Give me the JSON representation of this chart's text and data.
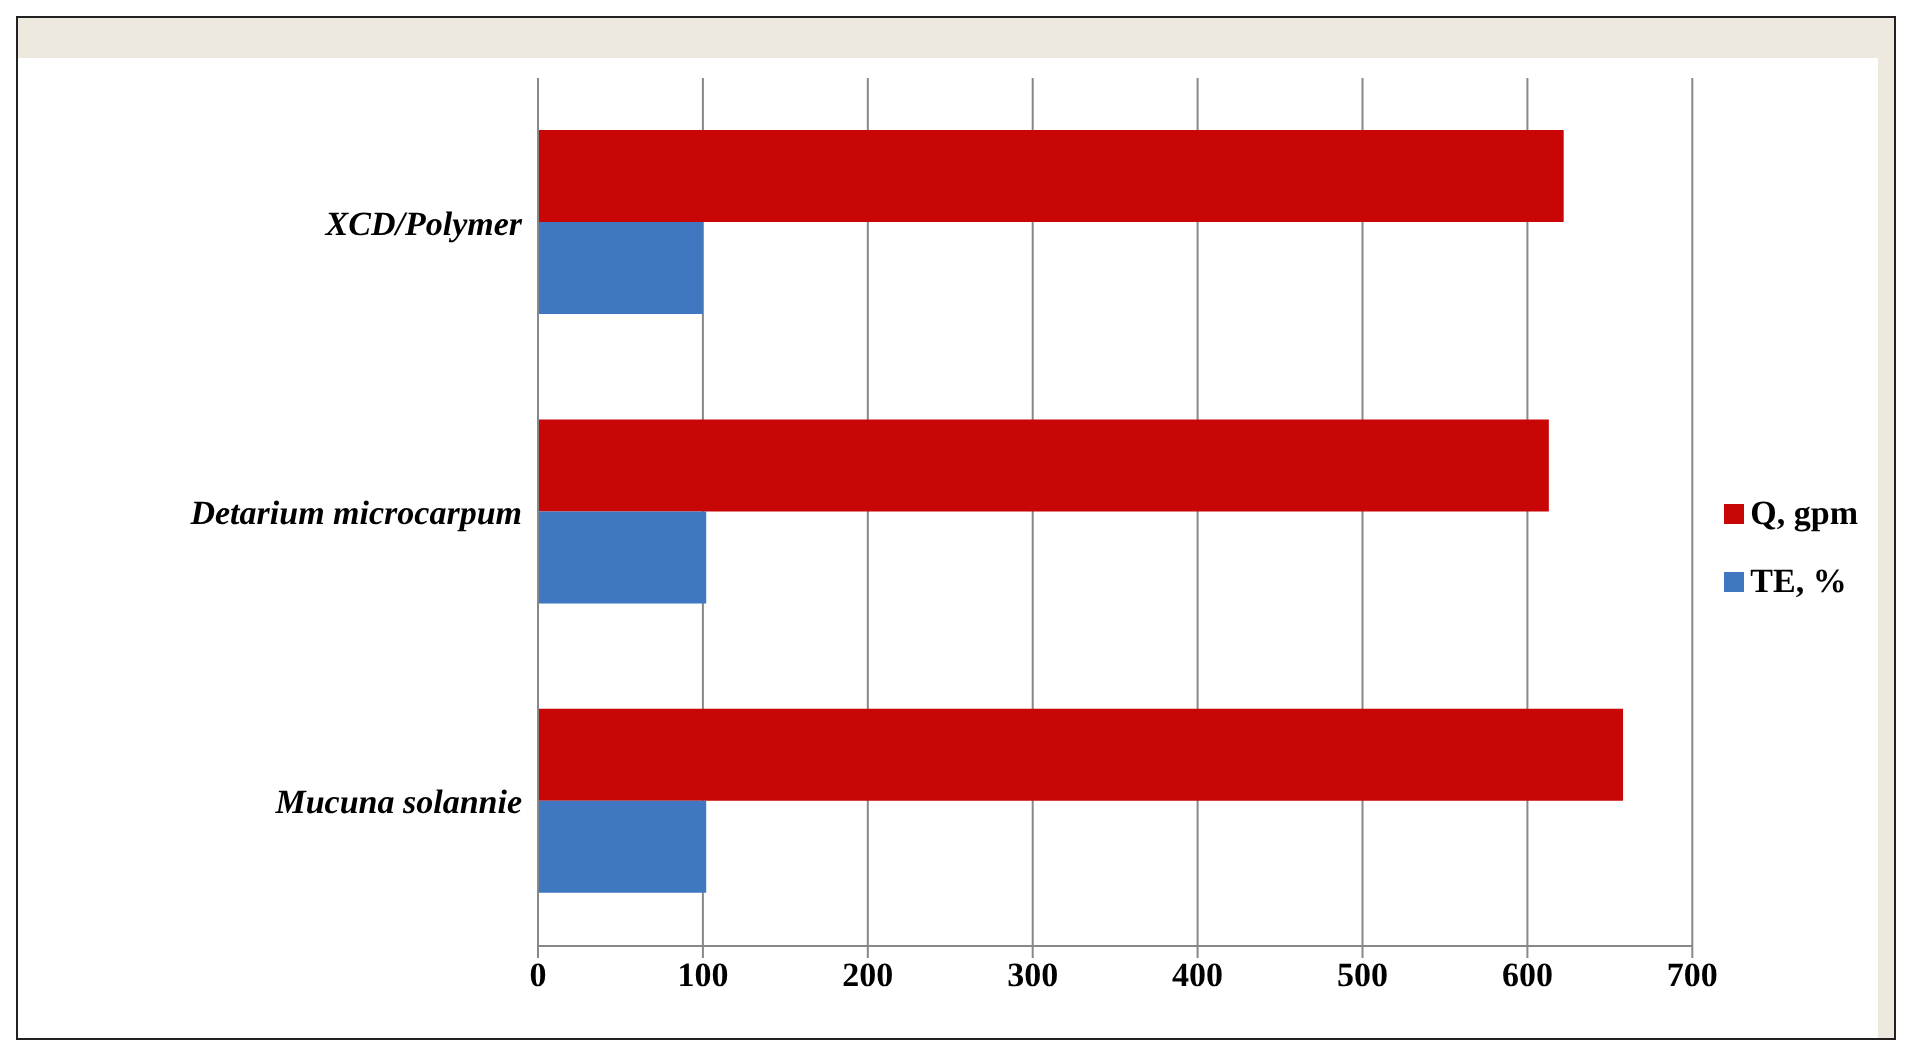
{
  "chart_data": {
    "type": "bar",
    "orientation": "horizontal",
    "categories": [
      "XCD/Polymer",
      "Detarium microcarpum",
      "Mucuna solannie"
    ],
    "series": [
      {
        "name": "Q, gpm",
        "color": "#c80606",
        "values": [
          622,
          613,
          658
        ]
      },
      {
        "name": "TE, %",
        "color": "#3f78c0",
        "values": [
          100,
          102,
          102
        ]
      }
    ],
    "xlim": [
      0,
      700
    ],
    "xticks": [
      0,
      100,
      200,
      300,
      400,
      500,
      600,
      700
    ],
    "grid": "x",
    "legend": "right"
  }
}
